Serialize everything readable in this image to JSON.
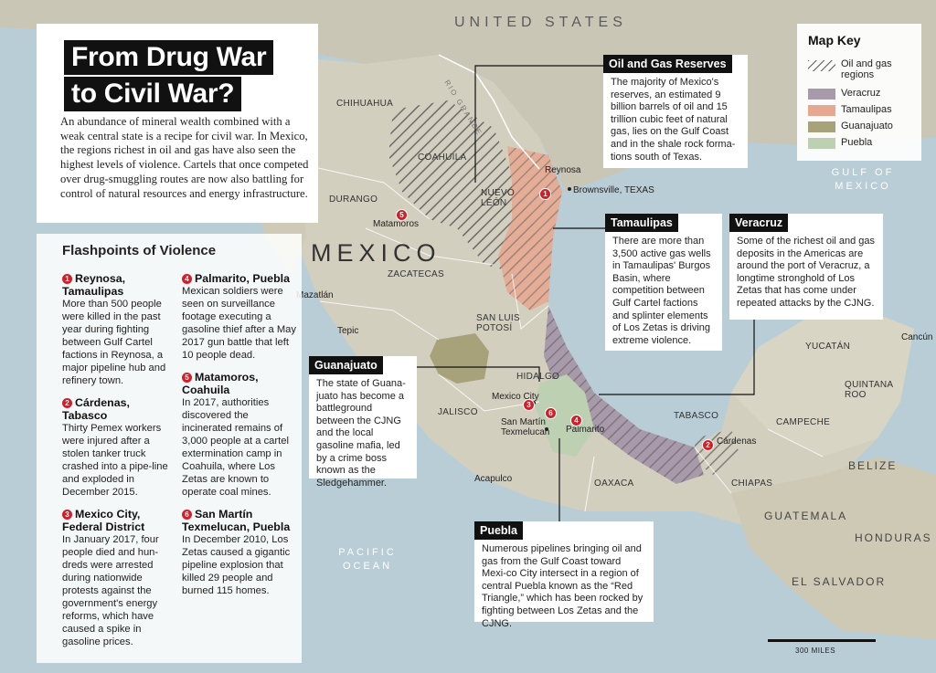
{
  "title": {
    "line1": "From Drug War",
    "line2": "to Civil War?"
  },
  "intro": "An abundance of mineral wealth combined with a weak central state is a recipe for civil war. In Mexico, the regions richest in oil and gas have also seen the highest levels of violence. Cartels that once competed over drug-smuggling routes are now also battling for control of natural resources and energy infrastructure.",
  "flashpoints": {
    "heading": "Flashpoints of Violence",
    "items": [
      {
        "num": "1",
        "title": "Reynosa, Tamaulipas",
        "body": "More than 500 people were killed in the past year during fighting between Gulf Cartel factions in Reynosa, a major pipeline hub and refinery town."
      },
      {
        "num": "2",
        "title": "Cárdenas, Tabasco",
        "body": "Thirty Pemex workers were injured after a stolen tanker truck crashed into a pipe-line and exploded in December 2015."
      },
      {
        "num": "3",
        "title": "Mexico City, Federal District",
        "body": "In January 2017, four people died and hun-dreds were arrested during nationwide protests against the government's energy reforms, which have caused a spike in gasoline prices."
      },
      {
        "num": "4",
        "title": "Palmarito, Puebla",
        "body": "Mexican soldiers were seen on surveillance footage executing a gasoline thief after a May 2017 gun battle that left 10 people dead."
      },
      {
        "num": "5",
        "title": "Matamoros, Coahuila",
        "body": "In 2017, authorities discovered the incinerated remains of 3,000 people at a cartel extermination camp in Coahuila, where Los Zetas are known to operate coal mines."
      },
      {
        "num": "6",
        "title": "San Martín Texmelucan, Puebla",
        "body": "In December 2010, Los Zetas caused a gigantic pipeline explosion that killed 29 people and burned 115 homes."
      }
    ]
  },
  "callouts": {
    "oil": {
      "title": "Oil and Gas Reserves",
      "body": "The majority of Mexico's reserves, an estimated 9 billion barrels of oil and 15 trillion cubic feet of natural gas, lies on the Gulf Coast and in the shale rock forma-tions south of Texas."
    },
    "tamaulipas": {
      "title": "Tamaulipas",
      "body": "There are more than 3,500 active gas wells in Tamaulipas' Burgos Basin, where competition between Gulf Cartel factions and splinter elements of Los Zetas is driving extreme violence."
    },
    "veracruz": {
      "title": "Veracruz",
      "body": "Some of the richest oil and gas deposits in the Americas are around the port of Veracruz, a longtime stronghold of Los Zetas that has come under repeated attacks by the CJNG."
    },
    "guanajuato": {
      "title": "Guanajuato",
      "body": "The state of Guana-juato has become a battleground between the CJNG and the local gasoline mafia, led by a crime boss known as the Sledgehammer."
    },
    "puebla": {
      "title": "Puebla",
      "body": "Numerous pipelines bringing oil and gas from the Gulf Coast toward Mexi-co City intersect in a region of central Puebla known as the “Red Triangle,” which has been rocked by fighting between Los Zetas and the CJNG."
    }
  },
  "key": {
    "title": "Map Key",
    "items": [
      {
        "label": "Oil and gas regions",
        "color": "hatch"
      },
      {
        "label": "Veracruz",
        "color": "#a89aaa"
      },
      {
        "label": "Tamaulipas",
        "color": "#e7a891"
      },
      {
        "label": "Guanajuato",
        "color": "#a8a27b"
      },
      {
        "label": "Puebla",
        "color": "#bdd0b1"
      }
    ]
  },
  "places": {
    "united_states": "UNITED STATES",
    "mexico": "MEXICO",
    "gulf": [
      "GULF OF",
      "MEXICO"
    ],
    "pacific": [
      "PACIFIC",
      "OCEAN"
    ],
    "rio_grande": "RIO GRANDE",
    "guatemala": "GUATEMALA",
    "belize": "BELIZE",
    "honduras": "HONDURAS",
    "el_salvador": "EL SALVADOR",
    "chihuahua": "CHIHUAHUA",
    "coahuila": "COAHUILA",
    "durango": "DURANGO",
    "nuevo_leon": [
      "NUEVO",
      "LEÓN"
    ],
    "zacatecas": "ZACATECAS",
    "san_luis_potosi": [
      "SAN LUIS",
      "POTOSÍ"
    ],
    "hidalgo": "HIDALGO",
    "jalisco": "JALISCO",
    "oaxaca": "OAXACA",
    "chiapas": "CHIAPAS",
    "tabasco": "TABASCO",
    "campeche": "CAMPECHE",
    "yucatan": "YUCATÁN",
    "quintana_roo": [
      "QUINTANA",
      "ROO"
    ],
    "reynosa": "Reynosa",
    "brownsville": "Brownsville, TEXAS",
    "matamoros": "Matamoros",
    "mazatlan": "Mazatlán",
    "tepic": "Tepic",
    "mexico_city": "Mexico City",
    "san_martin": [
      "San Martín",
      "Texmelucan"
    ],
    "palmarito": "Palmarito",
    "cardenas": "Cárdenas",
    "acapulco": "Acapulco",
    "cancun": "Cancún"
  },
  "markers": [
    {
      "num": "1"
    },
    {
      "num": "2"
    },
    {
      "num": "3"
    },
    {
      "num": "4"
    },
    {
      "num": "5"
    },
    {
      "num": "6"
    }
  ],
  "scale": {
    "label": "300 MILES"
  }
}
